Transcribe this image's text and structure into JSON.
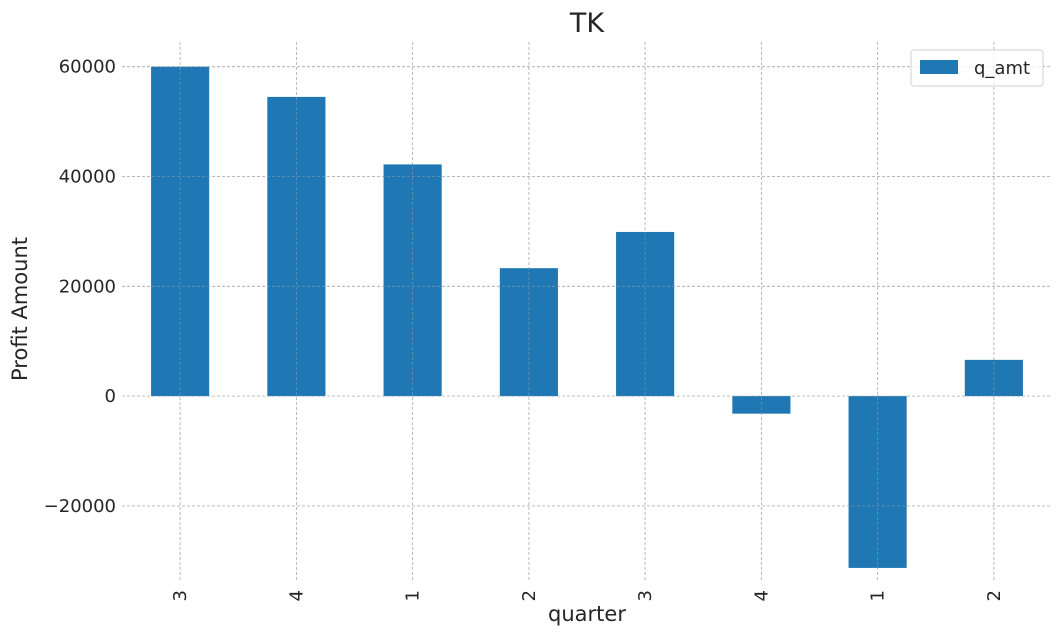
{
  "chart_data": {
    "type": "bar",
    "title": "TK",
    "xlabel": "quarter",
    "ylabel": "Profit Amount",
    "categories": [
      "3",
      "4",
      "1",
      "2",
      "3",
      "4",
      "1",
      "2"
    ],
    "series": [
      {
        "name": "q_amt",
        "values": [
          60000,
          54500,
          42200,
          23300,
          29900,
          -3200,
          -31300,
          6600
        ]
      }
    ],
    "ylim": [
      -33500,
      64500
    ],
    "yticks": [
      -20000,
      0,
      20000,
      40000,
      60000
    ],
    "ytick_labels": [
      "−20000",
      "0",
      "20000",
      "40000",
      "60000"
    ],
    "grid": true,
    "legend_position": "top-right",
    "bar_color": "#1f77b4"
  }
}
